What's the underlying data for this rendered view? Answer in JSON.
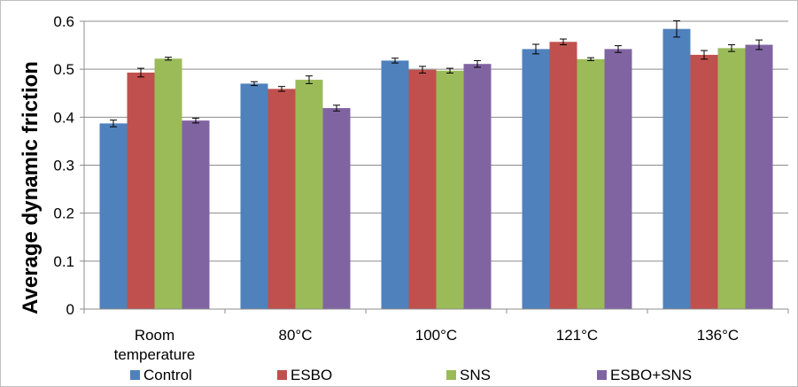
{
  "chart_data": {
    "type": "bar",
    "title": "",
    "xlabel": "",
    "ylabel": "Average dynamic friction",
    "ylim": [
      0,
      0.6
    ],
    "yticks": [
      "0",
      "0.1",
      "0.2",
      "0.3",
      "0.4",
      "0.5",
      "0.6"
    ],
    "ytick_values": [
      0,
      0.1,
      0.2,
      0.3,
      0.4,
      0.5,
      0.6
    ],
    "categories": [
      [
        "Room",
        "temperature"
      ],
      [
        "80°C"
      ],
      [
        "100°C"
      ],
      [
        "121°C"
      ],
      [
        "136°C"
      ]
    ],
    "series": [
      {
        "name": "Control",
        "color": "#4f81bd",
        "values": [
          0.387,
          0.47,
          0.518,
          0.542,
          0.584
        ],
        "errors": [
          0.007,
          0.004,
          0.005,
          0.01,
          0.017
        ]
      },
      {
        "name": "ESBO",
        "color": "#c0504d",
        "values": [
          0.493,
          0.459,
          0.499,
          0.557,
          0.53
        ],
        "errors": [
          0.009,
          0.005,
          0.007,
          0.006,
          0.009
        ]
      },
      {
        "name": "SNS",
        "color": "#9bbb59",
        "values": [
          0.522,
          0.478,
          0.497,
          0.521,
          0.544
        ],
        "errors": [
          0.003,
          0.008,
          0.005,
          0.003,
          0.007
        ]
      },
      {
        "name": "ESBO+SNS",
        "color": "#8064a2",
        "values": [
          0.393,
          0.419,
          0.511,
          0.542,
          0.551
        ],
        "errors": [
          0.005,
          0.006,
          0.007,
          0.007,
          0.01
        ]
      }
    ],
    "error_bars": true,
    "grid": "horizontal",
    "legend_position": "bottom"
  }
}
